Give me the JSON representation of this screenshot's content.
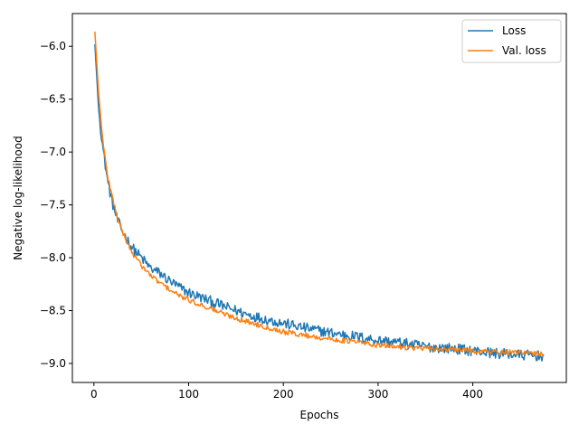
{
  "chart_data": {
    "type": "line",
    "title": "",
    "xlabel": "Epochs",
    "ylabel": "Negative log-likelihood",
    "xlim": [
      -22.75,
      498.75
    ],
    "ylim": [
      -9.18,
      -5.69
    ],
    "xticks": [
      0,
      100,
      200,
      300,
      400
    ],
    "yticks": [
      -6.0,
      -6.5,
      -7.0,
      -7.5,
      -8.0,
      -8.5,
      -9.0
    ],
    "xtick_labels": [
      "0",
      "100",
      "200",
      "300",
      "400"
    ],
    "ytick_labels": [
      "−6.0",
      "−6.5",
      "−7.0",
      "−7.5",
      "−8.0",
      "−8.5",
      "−9.0"
    ],
    "legend": {
      "placement": "top-right"
    },
    "grid": false,
    "series": [
      {
        "name": "Loss",
        "color": "#1f77b4",
        "x": [
          1,
          5,
          10,
          15,
          20,
          25,
          30,
          40,
          50,
          60,
          70,
          80,
          90,
          100,
          120,
          140,
          160,
          180,
          200,
          220,
          250,
          280,
          300,
          320,
          350,
          380,
          400,
          420,
          450,
          475
        ],
        "y": [
          -5.98,
          -6.6,
          -7.0,
          -7.3,
          -7.5,
          -7.65,
          -7.75,
          -7.9,
          -8.0,
          -8.1,
          -8.15,
          -8.22,
          -8.28,
          -8.33,
          -8.4,
          -8.47,
          -8.53,
          -8.58,
          -8.62,
          -8.66,
          -8.71,
          -8.75,
          -8.78,
          -8.8,
          -8.84,
          -8.86,
          -8.88,
          -8.9,
          -8.92,
          -8.93
        ]
      },
      {
        "name": "Val. loss",
        "color": "#ff7f0e",
        "x": [
          1,
          5,
          10,
          15,
          20,
          25,
          30,
          40,
          50,
          60,
          70,
          80,
          90,
          100,
          120,
          140,
          160,
          180,
          200,
          220,
          250,
          280,
          300,
          320,
          350,
          380,
          400,
          420,
          450,
          475
        ],
        "y": [
          -5.86,
          -6.45,
          -6.95,
          -7.25,
          -7.45,
          -7.62,
          -7.75,
          -7.95,
          -8.07,
          -8.17,
          -8.24,
          -8.3,
          -8.36,
          -8.4,
          -8.47,
          -8.54,
          -8.6,
          -8.65,
          -8.7,
          -8.73,
          -8.77,
          -8.8,
          -8.83,
          -8.84,
          -8.86,
          -8.87,
          -8.88,
          -8.89,
          -8.9,
          -8.91
        ]
      }
    ]
  }
}
